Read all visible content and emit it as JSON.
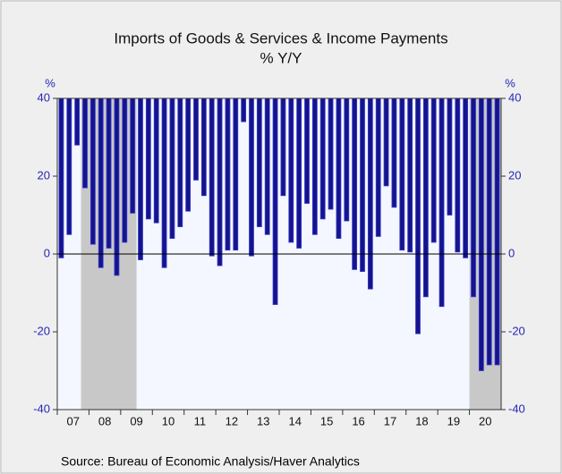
{
  "chart_data": {
    "type": "bar",
    "title": "Imports of Goods & Services & Income Payments",
    "subtitle": "% Y/Y",
    "y_label": "%",
    "y2_label": "%",
    "source": "Source:  Bureau of Economic Analysis/Haver Analytics",
    "years": [
      "07",
      "08",
      "09",
      "10",
      "11",
      "12",
      "13",
      "14",
      "15",
      "16",
      "17",
      "18",
      "19",
      "20"
    ],
    "values": [
      -1,
      5,
      28,
      17,
      2.5,
      -3.5,
      1.5,
      -5.5,
      3,
      10.5,
      -1.5,
      9,
      8,
      -3.5,
      4,
      7,
      11,
      19,
      15,
      -0.5,
      -3,
      1,
      1,
      34,
      -0.5,
      7,
      5,
      -13,
      15,
      3,
      1.5,
      13,
      5,
      9,
      11.5,
      4,
      8.5,
      -4,
      -4.5,
      -9,
      4.5,
      17.5,
      12,
      1,
      0.5,
      -20.5,
      -11,
      3,
      -13.5,
      10,
      0.5,
      -1,
      -11,
      -30,
      -28.5,
      -28.5
    ],
    "color": "#14148c",
    "shaded_ranges": [
      [
        3,
        9
      ],
      [
        52,
        55
      ]
    ],
    "ylim": [
      -40,
      40
    ],
    "yticks": [
      -40,
      -20,
      0,
      20,
      40
    ],
    "y2lim": [
      -40,
      40
    ],
    "y2ticks": [
      -40,
      -20,
      0,
      20,
      40
    ]
  }
}
